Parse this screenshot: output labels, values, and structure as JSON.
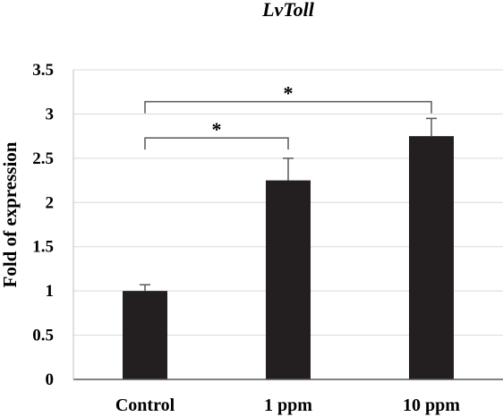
{
  "chart_data": {
    "type": "bar",
    "title": "LvToll",
    "xlabel": "",
    "ylabel": "Fold of expression",
    "categories": [
      "Control",
      "1 ppm",
      "10 ppm"
    ],
    "values": [
      1.0,
      2.25,
      2.75
    ],
    "errors": [
      0.07,
      0.25,
      0.2
    ],
    "ylim": [
      0,
      3.5
    ],
    "yticks": [
      "0",
      "0.5",
      "1",
      "1.5",
      "2",
      "2.5",
      "3",
      "3.5"
    ],
    "grid": true,
    "bar_color": "#231f20",
    "annotations": [
      {
        "text": "*",
        "from": "Control",
        "to": "1 ppm",
        "y": 2.73
      },
      {
        "text": "*",
        "from": "Control",
        "to": "10 ppm",
        "y": 3.14
      }
    ]
  }
}
